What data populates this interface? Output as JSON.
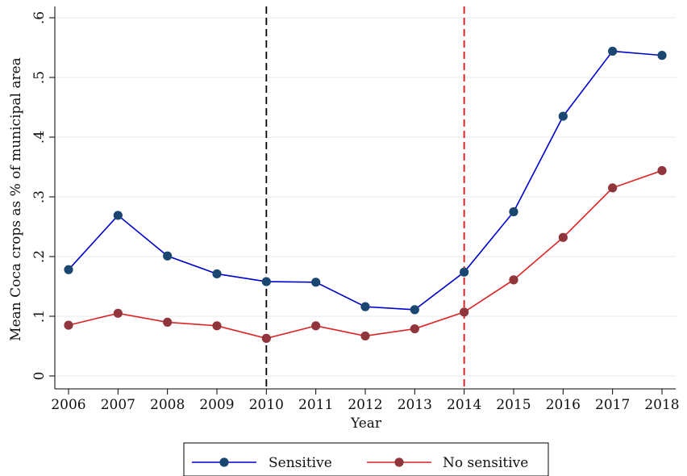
{
  "chart_data": {
    "type": "line",
    "xlabel": "Year",
    "ylabel": "Mean Coca crops as % of municipal area",
    "x": [
      2006,
      2007,
      2008,
      2009,
      2010,
      2011,
      2012,
      2013,
      2014,
      2015,
      2016,
      2017,
      2018
    ],
    "xlim": [
      2006,
      2018
    ],
    "ylim": [
      0,
      0.6
    ],
    "yticks": [
      0,
      0.1,
      0.2,
      0.3,
      0.4,
      0.5,
      0.6
    ],
    "ytick_labels": [
      "0",
      ".1",
      ".2",
      ".3",
      ".4",
      ".5",
      ".6"
    ],
    "xtick_labels": [
      "2006",
      "2007",
      "2008",
      "2009",
      "2010",
      "2011",
      "2012",
      "2013",
      "2014",
      "2015",
      "2016",
      "2017",
      "2018"
    ],
    "grid": true,
    "legend_position": "bottom",
    "series": [
      {
        "name": "Sensitive",
        "color": "#0000cc",
        "marker_color": "#1a476f",
        "values": [
          0.178,
          0.269,
          0.201,
          0.171,
          0.158,
          0.157,
          0.116,
          0.111,
          0.174,
          0.275,
          0.435,
          0.544,
          0.537
        ]
      },
      {
        "name": "No sensitive",
        "color": "#dd2222",
        "marker_color": "#90353b",
        "values": [
          0.085,
          0.105,
          0.09,
          0.084,
          0.063,
          0.084,
          0.067,
          0.079,
          0.107,
          0.161,
          0.232,
          0.315,
          0.344
        ]
      }
    ],
    "vertical_lines": [
      {
        "x": 2010,
        "color": "#000000",
        "style": "dashed"
      },
      {
        "x": 2014,
        "color": "#ee1111",
        "style": "dashed"
      }
    ]
  }
}
